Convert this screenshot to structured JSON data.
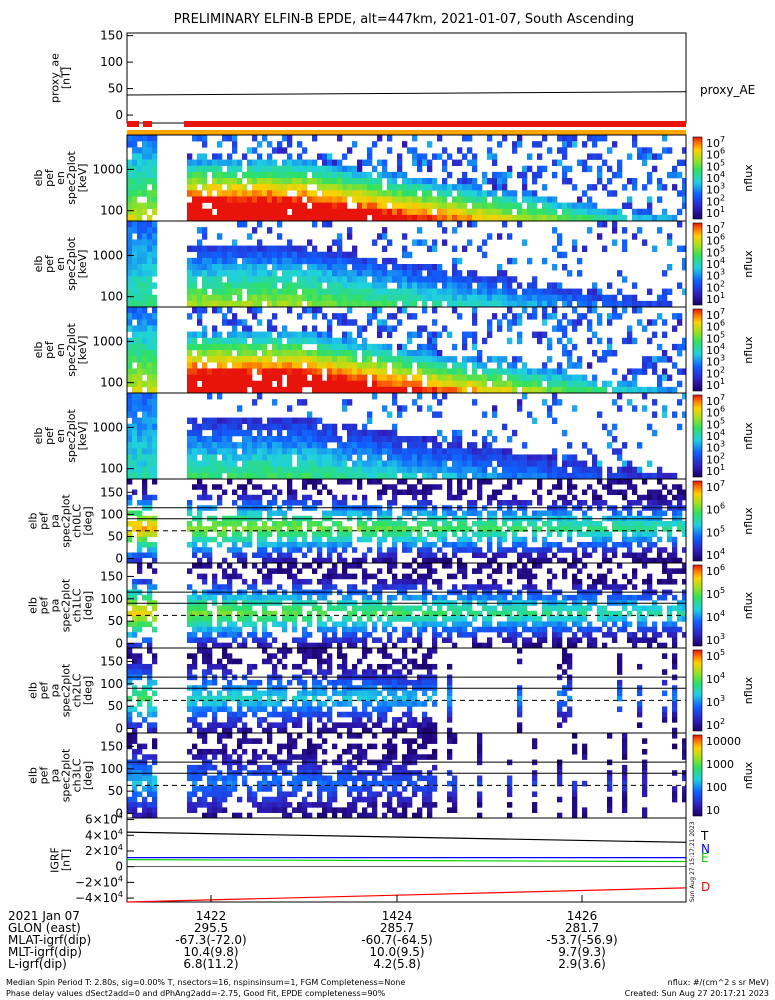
{
  "title": "PRELIMINARY ELFIN-B EPDE, alt=447km, 2021-01-07, South Ascending",
  "chart_data": [
    {
      "type": "line",
      "name": "proxy_ae",
      "ylabel_lines": [
        "proxy_ae",
        "[nT]"
      ],
      "legend": "proxy_AE",
      "yticks": [
        "150",
        "100",
        "50",
        "0"
      ],
      "ylim": [
        -15,
        155
      ],
      "series": [
        {
          "x": [
            0,
            0.5,
            1
          ],
          "values": [
            38,
            41,
            44
          ]
        }
      ]
    },
    {
      "type": "heatmap",
      "name": "spectrogram-1",
      "ylabel_lines": [
        "elb",
        "pef",
        "en",
        "spec2plot",
        "[keV]"
      ],
      "yticks": [
        "1000",
        "100"
      ],
      "yscale": "log",
      "colorbar": {
        "label": "nflux",
        "ticks": [
          {
            "base": "10",
            "exp": "7"
          },
          {
            "base": "10",
            "exp": "6"
          },
          {
            "base": "10",
            "exp": "5"
          },
          {
            "base": "10",
            "exp": "4"
          },
          {
            "base": "10",
            "exp": "3"
          },
          {
            "base": "10",
            "exp": "2"
          },
          {
            "base": "10",
            "exp": "1"
          }
        ]
      }
    },
    {
      "type": "heatmap",
      "name": "spectrogram-2",
      "ylabel_lines": [
        "elb",
        "pef",
        "en",
        "spec2plot",
        "[keV]"
      ],
      "yticks": [
        "1000",
        "100"
      ],
      "yscale": "log",
      "colorbar": {
        "label": "nflux",
        "ticks": [
          {
            "base": "10",
            "exp": "7"
          },
          {
            "base": "10",
            "exp": "6"
          },
          {
            "base": "10",
            "exp": "5"
          },
          {
            "base": "10",
            "exp": "4"
          },
          {
            "base": "10",
            "exp": "3"
          },
          {
            "base": "10",
            "exp": "2"
          },
          {
            "base": "10",
            "exp": "1"
          }
        ]
      }
    },
    {
      "type": "heatmap",
      "name": "spectrogram-3",
      "ylabel_lines": [
        "elb",
        "pef",
        "en",
        "spec2plot",
        "[keV]"
      ],
      "yticks": [
        "1000",
        "100"
      ],
      "yscale": "log",
      "colorbar": {
        "label": "nflux",
        "ticks": [
          {
            "base": "10",
            "exp": "7"
          },
          {
            "base": "10",
            "exp": "6"
          },
          {
            "base": "10",
            "exp": "5"
          },
          {
            "base": "10",
            "exp": "4"
          },
          {
            "base": "10",
            "exp": "3"
          },
          {
            "base": "10",
            "exp": "2"
          },
          {
            "base": "10",
            "exp": "1"
          }
        ]
      }
    },
    {
      "type": "heatmap",
      "name": "spectrogram-4",
      "ylabel_lines": [
        "elb",
        "pef",
        "en",
        "spec2plot",
        "[keV]"
      ],
      "yticks": [
        "1000",
        "100"
      ],
      "yscale": "log",
      "colorbar": {
        "label": "nflux",
        "ticks": [
          {
            "base": "10",
            "exp": "7"
          },
          {
            "base": "10",
            "exp": "6"
          },
          {
            "base": "10",
            "exp": "5"
          },
          {
            "base": "10",
            "exp": "4"
          },
          {
            "base": "10",
            "exp": "3"
          },
          {
            "base": "10",
            "exp": "2"
          },
          {
            "base": "10",
            "exp": "1"
          }
        ]
      }
    },
    {
      "type": "heatmap",
      "name": "pitch-angle-ch0",
      "ylabel_lines": [
        "elb",
        "pef",
        "pa",
        "spec2plot",
        "ch0LC",
        "[deg]"
      ],
      "yticks": [
        "150",
        "100",
        "50",
        "0"
      ],
      "ylim": [
        -10,
        180
      ],
      "colorbar": {
        "label": "nflux",
        "ticks": [
          {
            "base": "10",
            "exp": "7"
          },
          {
            "base": "10",
            "exp": "6"
          },
          {
            "base": "10",
            "exp": "5"
          },
          {
            "base": "10",
            "exp": "4"
          }
        ]
      }
    },
    {
      "type": "heatmap",
      "name": "pitch-angle-ch1",
      "ylabel_lines": [
        "elb",
        "pef",
        "pa",
        "spec2plot",
        "ch1LC",
        "[deg]"
      ],
      "yticks": [
        "150",
        "100",
        "50",
        "0"
      ],
      "ylim": [
        -10,
        180
      ],
      "colorbar": {
        "label": "nflux",
        "ticks": [
          {
            "base": "10",
            "exp": "6"
          },
          {
            "base": "10",
            "exp": "5"
          },
          {
            "base": "10",
            "exp": "4"
          },
          {
            "base": "10",
            "exp": "3"
          }
        ]
      }
    },
    {
      "type": "heatmap",
      "name": "pitch-angle-ch2",
      "ylabel_lines": [
        "elb",
        "pef",
        "pa",
        "spec2plot",
        "ch2LC",
        "[deg]"
      ],
      "yticks": [
        "150",
        "100",
        "50",
        "0"
      ],
      "ylim": [
        -10,
        180
      ],
      "colorbar": {
        "label": "nflux",
        "ticks": [
          {
            "base": "10",
            "exp": "5"
          },
          {
            "base": "10",
            "exp": "4"
          },
          {
            "base": "10",
            "exp": "3"
          },
          {
            "base": "10",
            "exp": "2"
          }
        ]
      }
    },
    {
      "type": "heatmap",
      "name": "pitch-angle-ch3",
      "ylabel_lines": [
        "elb",
        "pef",
        "pa",
        "spec2plot",
        "ch3LC",
        "[deg]"
      ],
      "yticks": [
        "150",
        "100",
        "50",
        "0"
      ],
      "ylim": [
        -10,
        180
      ],
      "colorbar": {
        "label": "nflux",
        "ticks": [
          {
            "base": "",
            "exp": "",
            "text": "10000"
          },
          {
            "base": "",
            "exp": "",
            "text": "1000"
          },
          {
            "base": "",
            "exp": "",
            "text": "100"
          },
          {
            "base": "",
            "exp": "",
            "text": "10"
          }
        ]
      }
    },
    {
      "type": "line",
      "name": "igrf",
      "ylabel_lines": [
        "IGRF",
        "[nT]"
      ],
      "yticks": [
        {
          "base": "6×10",
          "exp": "4"
        },
        {
          "base": "4×10",
          "exp": "4"
        },
        {
          "base": "2×10",
          "exp": "4"
        },
        {
          "base": "0",
          "exp": ""
        },
        {
          "base": "−2×10",
          "exp": "4"
        },
        {
          "base": "−4×10",
          "exp": "4"
        }
      ],
      "ylim": [
        -45000,
        62000
      ],
      "series": [
        {
          "name": "T",
          "color": "#000000",
          "x": [
            0,
            1
          ],
          "values": [
            44000,
            31000
          ]
        },
        {
          "name": "N",
          "color": "#0000ff",
          "x": [
            0,
            1
          ],
          "values": [
            11500,
            11500
          ]
        },
        {
          "name": "E",
          "color": "#00d000",
          "x": [
            0,
            1
          ],
          "values": [
            9000,
            6500
          ]
        },
        {
          "name": "D",
          "color": "#ff0000",
          "x": [
            0,
            1
          ],
          "values": [
            -45000,
            -27000
          ]
        }
      ]
    }
  ],
  "time_axis": {
    "rows": [
      {
        "label": "2021 Jan 07",
        "values": [
          "1422",
          "1424",
          "1426"
        ]
      },
      {
        "label": "GLON (east)",
        "values": [
          "295.5",
          "285.7",
          "281.7"
        ]
      },
      {
        "label": "MLAT-igrf(dip)",
        "values": [
          "-67.3(-72.0)",
          "-60.7(-64.5)",
          "-53.7(-56.9)"
        ]
      },
      {
        "label": "MLT-igrf(dip)",
        "values": [
          "10.4(9.8)",
          "10.0(9.5)",
          "9.7(9.3)"
        ]
      },
      {
        "label": "L-igrf(dip)",
        "values": [
          "6.8(11.2)",
          "4.2(5.8)",
          "2.9(3.6)"
        ]
      }
    ]
  },
  "footer": {
    "left_1": "Median Spin Period T: 2.80s, sig=0.00% T, nsectors=16, nspinsinsum=1, FGM Completeness=None",
    "left_2": "Phase delay values dSect2add=0 and dPhAng2add=-2.75, Good Fit, EPDE completeness=90%",
    "right_1": "nflux: #/(cm^2 s sr MeV)",
    "right_2": "Created: Sun Aug 27 20:17:21 2023"
  },
  "side_stamp": "Sun Aug 27 15:17:21 2023",
  "colors": {
    "axis": "#000000",
    "red_bar": "#e8140c",
    "orange_bar": "#ffa500",
    "spectral_low": "#1a0a3a",
    "spectral_high": "#e8140c"
  }
}
